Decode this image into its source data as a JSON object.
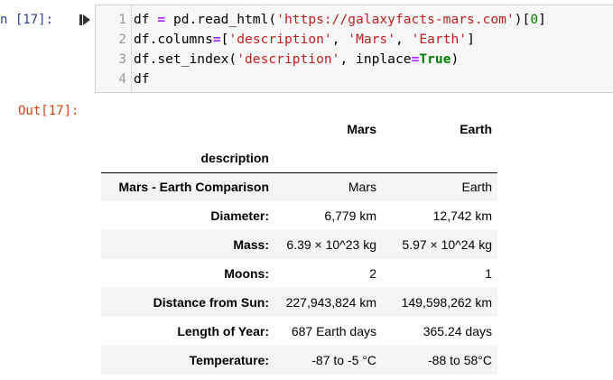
{
  "input_prompt": "n [17]:",
  "output_prompt": "Out[17]:",
  "code_lines": [
    {
      "no": "1",
      "tokens": [
        {
          "t": "df ",
          "c": ""
        },
        {
          "t": "=",
          "c": "kw-op"
        },
        {
          "t": " pd.read_html(",
          "c": ""
        },
        {
          "t": "'https://galaxyfacts-mars.com'",
          "c": "str"
        },
        {
          "t": ")[",
          "c": ""
        },
        {
          "t": "0",
          "c": "num"
        },
        {
          "t": "]",
          "c": ""
        }
      ]
    },
    {
      "no": "2",
      "tokens": [
        {
          "t": "df.columns",
          "c": ""
        },
        {
          "t": "=",
          "c": "kw-op"
        },
        {
          "t": "[",
          "c": ""
        },
        {
          "t": "'description'",
          "c": "str"
        },
        {
          "t": ", ",
          "c": ""
        },
        {
          "t": "'Mars'",
          "c": "str"
        },
        {
          "t": ", ",
          "c": ""
        },
        {
          "t": "'Earth'",
          "c": "str"
        },
        {
          "t": "]",
          "c": ""
        }
      ]
    },
    {
      "no": "3",
      "tokens": [
        {
          "t": "df.set_index(",
          "c": ""
        },
        {
          "t": "'description'",
          "c": "str"
        },
        {
          "t": ", inplace",
          "c": ""
        },
        {
          "t": "=",
          "c": "kw-op"
        },
        {
          "t": "True",
          "c": "bool"
        },
        {
          "t": ")",
          "c": ""
        }
      ]
    },
    {
      "no": "4",
      "tokens": [
        {
          "t": "df",
          "c": ""
        }
      ]
    }
  ],
  "table": {
    "columns": [
      "Mars",
      "Earth"
    ],
    "index_name": "description",
    "rows": [
      {
        "label": "Mars - Earth Comparison",
        "mars": "Mars",
        "earth": "Earth"
      },
      {
        "label": "Diameter:",
        "mars": "6,779 km",
        "earth": "12,742 km"
      },
      {
        "label": "Mass:",
        "mars": "6.39 × 10^23 kg",
        "earth": "5.97 × 10^24 kg"
      },
      {
        "label": "Moons:",
        "mars": "2",
        "earth": "1"
      },
      {
        "label": "Distance from Sun:",
        "mars": "227,943,824 km",
        "earth": "149,598,262 km"
      },
      {
        "label": "Length of Year:",
        "mars": "687 Earth days",
        "earth": "365.24 days"
      },
      {
        "label": "Temperature:",
        "mars": "-87 to -5 °C",
        "earth": "-88 to 58°C"
      }
    ]
  },
  "colors": {
    "input_prompt": "#303f9f",
    "output_prompt": "#d84315",
    "string": "#ba2121",
    "keyword": "#008000",
    "operator": "#aa22ff"
  },
  "icons": {
    "run": "step-forward-icon"
  }
}
